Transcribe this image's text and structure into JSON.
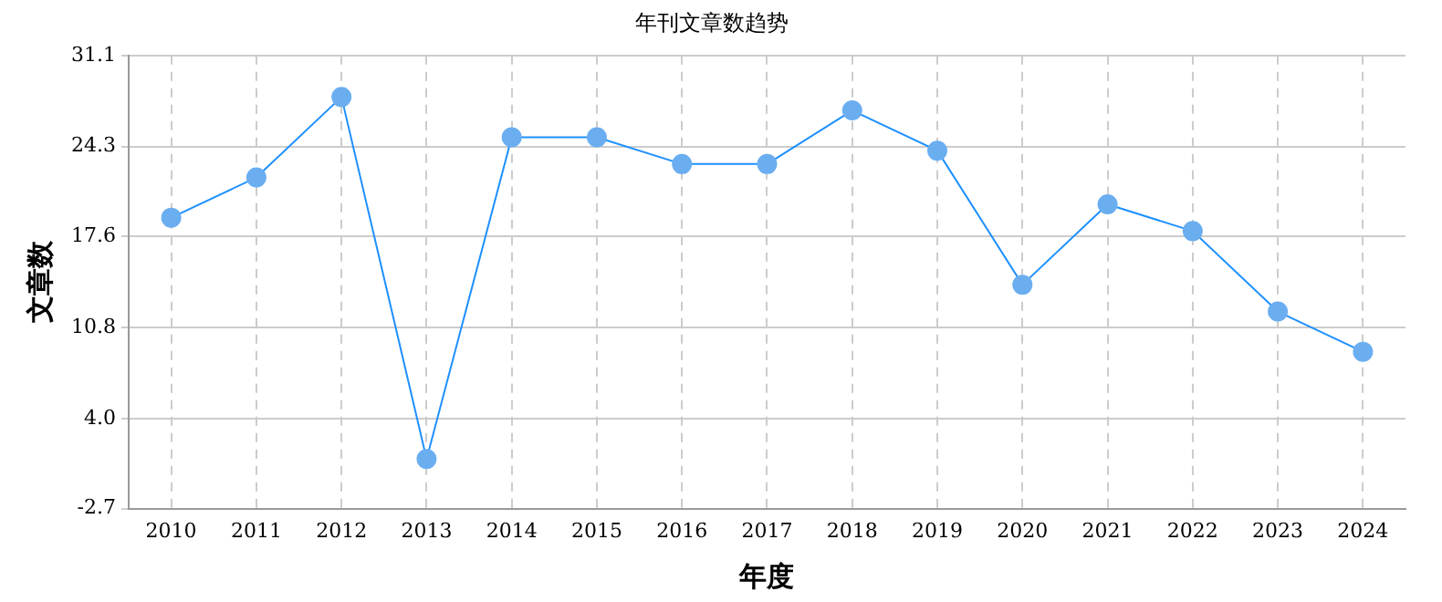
{
  "chart_data": {
    "type": "line",
    "title": "年刊文章数趋势",
    "xlabel": "年度",
    "ylabel": "文章数",
    "categories": [
      "2010",
      "2011",
      "2012",
      "2013",
      "2014",
      "2015",
      "2016",
      "2017",
      "2018",
      "2019",
      "2020",
      "2021",
      "2022",
      "2023",
      "2024"
    ],
    "series": [
      {
        "color": "#1e90ff",
        "values": [
          19,
          22,
          28,
          1,
          25,
          25,
          23,
          23,
          27,
          24,
          14,
          20,
          18,
          12,
          9
        ]
      }
    ],
    "ylim": [
      -2.7,
      31.1
    ],
    "yticks": [
      -2.7,
      {
        "value": 4,
        "label": "4.0"
      },
      10.8,
      17.6,
      24.3,
      31.1
    ],
    "grid": true,
    "legend": false,
    "marker": "circle",
    "line_style": "solid"
  }
}
